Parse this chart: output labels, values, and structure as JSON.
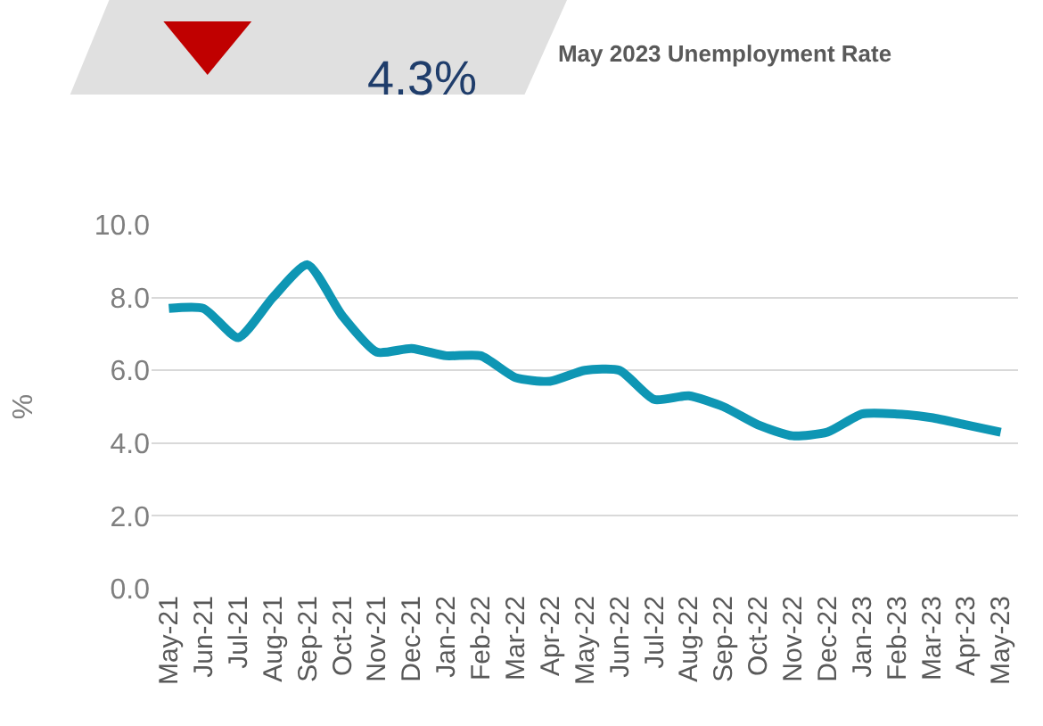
{
  "chart_data": {
    "type": "line",
    "title": "May 2023 Unemployment Rate",
    "annotations": [
      "4.3%"
    ],
    "ylabel": "%",
    "categories": [
      "May-21",
      "Jun-21",
      "Jul-21",
      "Aug-21",
      "Sep-21",
      "Oct-21",
      "Nov-21",
      "Dec-21",
      "Jan-22",
      "Feb-22",
      "Mar-22",
      "Apr-22",
      "May-22",
      "Jun-22",
      "Jul-22",
      "Aug-22",
      "Sep-22",
      "Oct-22",
      "Nov-22",
      "Dec-22",
      "Jan-23",
      "Feb-23",
      "Mar-23",
      "Apr-23",
      "May-23"
    ],
    "series": [
      {
        "color": "#0e96b4",
        "values": [
          7.7,
          7.7,
          6.9,
          8.0,
          8.9,
          7.5,
          6.5,
          6.6,
          6.4,
          6.4,
          5.8,
          5.7,
          6.0,
          6.0,
          5.2,
          5.3,
          5.0,
          4.5,
          4.2,
          4.3,
          4.8,
          4.8,
          4.7,
          4.5,
          4.3
        ]
      }
    ],
    "ylim": [
      0,
      10
    ],
    "yticks": [
      {
        "value": 0,
        "label": "0.0"
      },
      {
        "value": 2,
        "label": "2.0"
      },
      {
        "value": 4,
        "label": "4.0"
      },
      {
        "value": 6,
        "label": "6.0"
      },
      {
        "value": 8,
        "label": "8.0"
      },
      {
        "value": 10,
        "label": "10.0"
      }
    ],
    "grid": "y",
    "marker": "none",
    "line_style": "solid"
  }
}
